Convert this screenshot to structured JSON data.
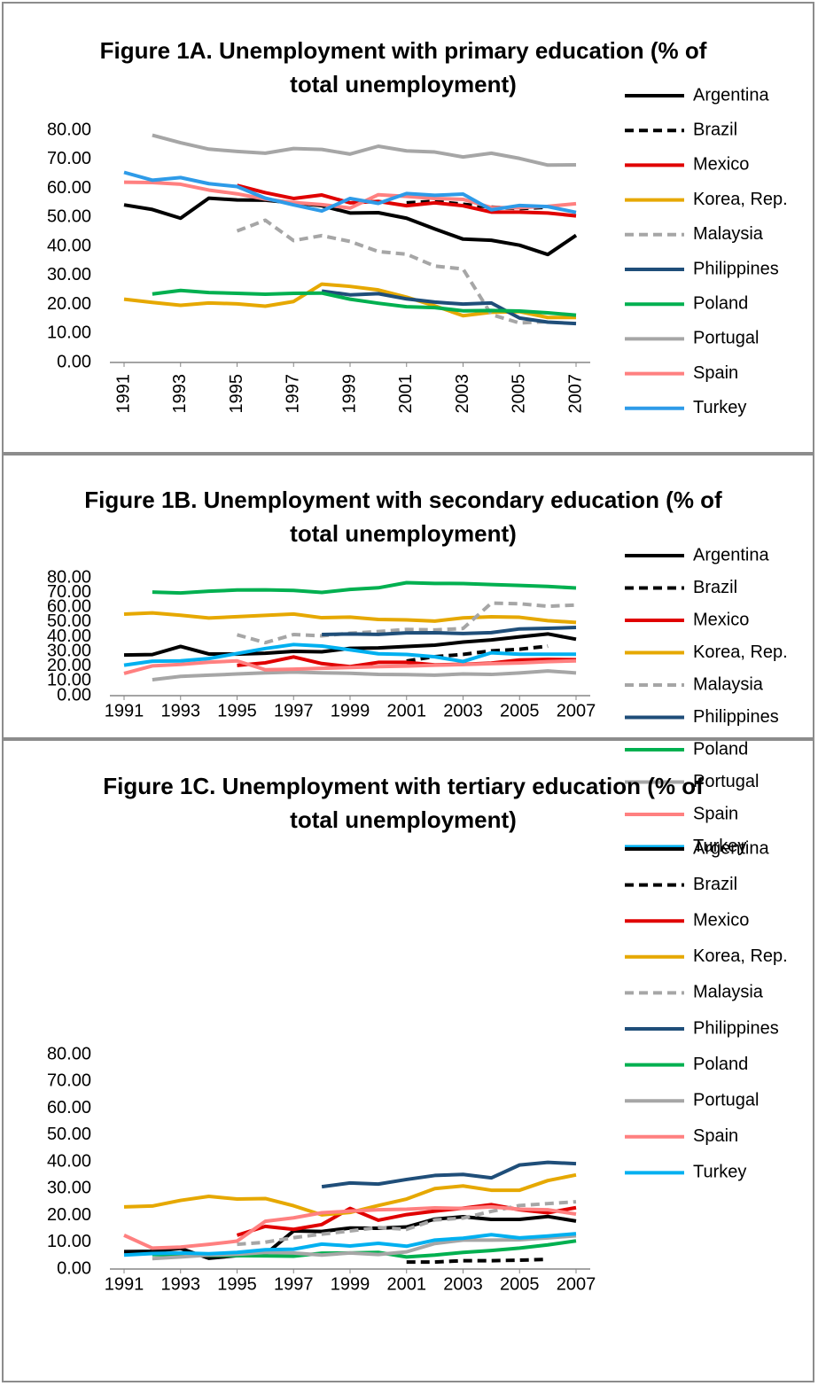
{
  "chart_data": [
    {
      "type": "line",
      "title": "Figure 1A. Unemployment with primary education (% of total unemployment)",
      "x": [
        1991,
        1992,
        1993,
        1994,
        1995,
        1996,
        1997,
        1998,
        1999,
        2000,
        2001,
        2002,
        2003,
        2004,
        2005,
        2006,
        2007
      ],
      "xlim": [
        1991,
        2007
      ],
      "xticks": [
        1991,
        1993,
        1995,
        1997,
        1999,
        2001,
        2003,
        2005,
        2007
      ],
      "xtick_rotation": -90,
      "ylim": [
        0,
        80
      ],
      "yticks": [
        {
          "value": 0,
          "label": "0.00"
        },
        {
          "value": 10,
          "label": "10.00"
        },
        {
          "value": 20,
          "label": "20.00"
        },
        {
          "value": 30,
          "label": "30.00"
        },
        {
          "value": 40,
          "label": "40.00"
        },
        {
          "value": 50,
          "label": "50.00"
        },
        {
          "value": 60,
          "label": "60.00"
        },
        {
          "value": 70,
          "label": "70.00"
        },
        {
          "value": 80,
          "label": "80.00"
        }
      ],
      "grid": false,
      "legend": "right",
      "series": [
        {
          "name": "Argentina",
          "color": "#000000",
          "values": [
            54.3,
            52.7,
            49.7,
            56.6,
            56,
            55.9,
            55,
            54,
            51.5,
            51.6,
            49.7,
            46,
            42.5,
            42.1,
            40.4,
            37.2,
            43.8
          ]
        },
        {
          "name": "Brazil",
          "color": "#000000",
          "dash": true,
          "values": [
            null,
            null,
            null,
            null,
            null,
            null,
            null,
            null,
            null,
            null,
            55,
            55.5,
            54.5,
            53.5,
            53,
            53.5,
            null
          ]
        },
        {
          "name": "Mexico",
          "color": "#e00000",
          "values": [
            null,
            null,
            null,
            null,
            61,
            58.5,
            56.5,
            57.7,
            55,
            55.5,
            54,
            55,
            54,
            51.8,
            51.8,
            51.5,
            50.5
          ]
        },
        {
          "name": "Korea, Rep.",
          "color": "#e6a800",
          "values": [
            21.8,
            20.7,
            19.7,
            20.5,
            20.2,
            19.4,
            21,
            27,
            26.2,
            25,
            22.5,
            19.5,
            16.1,
            17.3,
            17.5,
            15.5,
            15.5
          ]
        },
        {
          "name": "Malaysia",
          "color": "#a6a6a6",
          "dash": true,
          "values": [
            null,
            null,
            null,
            null,
            45.3,
            49,
            42,
            43.7,
            41.7,
            38.2,
            37.3,
            33.2,
            32.2,
            16.5,
            13.6,
            14.1,
            null
          ]
        },
        {
          "name": "Philippines",
          "color": "#1f4e79",
          "values": [
            null,
            null,
            null,
            null,
            null,
            null,
            null,
            24.6,
            23.3,
            23.7,
            21.9,
            20.8,
            20.1,
            20.5,
            15.3,
            13.9,
            13.4
          ]
        },
        {
          "name": "Poland",
          "color": "#00b050",
          "values": [
            null,
            23.6,
            24.8,
            24.1,
            23.8,
            23.5,
            23.8,
            23.9,
            21.8,
            20.4,
            19.2,
            18.9,
            17.8,
            17.9,
            17.7,
            17.1,
            16.3
          ]
        },
        {
          "name": "Portugal",
          "color": "#a6a6a6",
          "values": [
            null,
            78.3,
            75.7,
            73.5,
            72.7,
            72.1,
            73.7,
            73.4,
            71.8,
            74.5,
            72.9,
            72.5,
            70.8,
            72.1,
            70.3,
            68,
            68.1
          ]
        },
        {
          "name": "Spain",
          "color": "#ff8080",
          "values": [
            62.1,
            62,
            61.4,
            59.4,
            58.1,
            56.3,
            55.1,
            54.4,
            53.2,
            57.8,
            57.2,
            56.5,
            56.2,
            53.4,
            53.3,
            53.8,
            54.7
          ]
        },
        {
          "name": "Turkey",
          "color": "#2e9be8",
          "values": [
            65.5,
            62.8,
            63.7,
            61.6,
            60.6,
            56.6,
            54.3,
            52.2,
            56.5,
            54.8,
            58.2,
            57.6,
            58,
            52.6,
            54.1,
            53.7,
            51.7
          ]
        }
      ]
    },
    {
      "type": "line",
      "title": "Figure 1B. Unemployment with secondary education (% of total unemployment)",
      "x": [
        1991,
        1992,
        1993,
        1994,
        1995,
        1996,
        1997,
        1998,
        1999,
        2000,
        2001,
        2002,
        2003,
        2004,
        2005,
        2006,
        2007
      ],
      "xlim": [
        1991,
        2007
      ],
      "xticks": [
        1991,
        1993,
        1995,
        1997,
        1999,
        2001,
        2003,
        2005,
        2007
      ],
      "ylim": [
        0,
        80
      ],
      "yticks": [
        {
          "value": 0,
          "label": "0.00"
        },
        {
          "value": 10,
          "label": "10.00"
        },
        {
          "value": 20,
          "label": "20.00"
        },
        {
          "value": 30,
          "label": "30.00"
        },
        {
          "value": 40,
          "label": "40.00"
        },
        {
          "value": 50,
          "label": "50.00"
        },
        {
          "value": 60,
          "label": "60.00"
        },
        {
          "value": 70,
          "label": "70.00"
        },
        {
          "value": 80,
          "label": "80.00"
        }
      ],
      "grid": false,
      "legend": "right",
      "series": [
        {
          "name": "Argentina",
          "color": "#000000",
          "values": [
            27.6,
            27.9,
            33.4,
            28.3,
            28.2,
            28.8,
            30.1,
            29.8,
            32.1,
            32.4,
            33.4,
            34.3,
            36.4,
            37.8,
            39.9,
            41.9,
            38.3
          ]
        },
        {
          "name": "Brazil",
          "color": "#000000",
          "dash": true,
          "values": [
            null,
            null,
            null,
            null,
            null,
            null,
            null,
            null,
            null,
            null,
            23.5,
            26.5,
            28,
            30.4,
            31.5,
            33.6,
            null
          ]
        },
        {
          "name": "Mexico",
          "color": "#e00000",
          "values": [
            null,
            null,
            null,
            null,
            20.5,
            22.3,
            26.3,
            21.8,
            19.7,
            22.6,
            22.6,
            20.9,
            21.3,
            22.1,
            24.2,
            24.7,
            24.4
          ]
        },
        {
          "name": "Korea, Rep.",
          "color": "#e6a800",
          "values": [
            55.3,
            56.2,
            54.6,
            52.7,
            53.6,
            54.5,
            55.4,
            52.9,
            53.3,
            51.7,
            51.4,
            50.6,
            52.8,
            53.5,
            53.2,
            50.9,
            49.7
          ]
        },
        {
          "name": "Malaysia",
          "color": "#a6a6a6",
          "dash": true,
          "values": [
            null,
            null,
            null,
            null,
            41.3,
            36,
            41.5,
            40.6,
            42.4,
            43.5,
            45,
            44.6,
            45.6,
            62.8,
            62.4,
            60.7,
            61.5
          ]
        },
        {
          "name": "Philippines",
          "color": "#1f4e79",
          "values": [
            null,
            null,
            null,
            null,
            null,
            null,
            null,
            41.5,
            41.9,
            41.6,
            42.6,
            42.7,
            42.2,
            42.8,
            45.3,
            45.7,
            46.3
          ]
        },
        {
          "name": "Poland",
          "color": "#00b050",
          "values": [
            null,
            70.3,
            69.7,
            70.9,
            71.7,
            71.8,
            71.4,
            70.1,
            72.1,
            73.2,
            76.7,
            76.2,
            76.1,
            75.4,
            74.8,
            74.1,
            73.1
          ]
        },
        {
          "name": "Portugal",
          "color": "#a6a6a6",
          "values": [
            null,
            10.8,
            13.1,
            13.9,
            14.7,
            15.5,
            16,
            15.5,
            15.2,
            14.4,
            14.3,
            13.9,
            14.7,
            14.4,
            15.4,
            16.8,
            15.4
          ]
        },
        {
          "name": "Spain",
          "color": "#ff8080",
          "values": [
            15.1,
            20.2,
            21.2,
            22.7,
            23.6,
            17.6,
            18,
            18.6,
            19.1,
            19.7,
            20.1,
            20.7,
            21.1,
            21.7,
            22.2,
            23.1,
            23.6
          ]
        },
        {
          "name": "Turkey",
          "color": "#00b0f0",
          "values": [
            20.7,
            23.4,
            23.6,
            25.2,
            28.6,
            32,
            34.7,
            33.7,
            31.1,
            28.4,
            28,
            26.4,
            23.2,
            29.1,
            28.1,
            28.1,
            28.1
          ]
        }
      ]
    },
    {
      "type": "line",
      "title": "Figure 1C. Unemployment with tertiary education (% of total unemployment)",
      "x": [
        1991,
        1992,
        1993,
        1994,
        1995,
        1996,
        1997,
        1998,
        1999,
        2000,
        2001,
        2002,
        2003,
        2004,
        2005,
        2006,
        2007
      ],
      "xlim": [
        1991,
        2007
      ],
      "xticks": [
        1991,
        1993,
        1995,
        1997,
        1999,
        2001,
        2003,
        2005,
        2007
      ],
      "ylim": [
        0,
        80
      ],
      "yticks": [
        {
          "value": 0,
          "label": "0.00"
        },
        {
          "value": 10,
          "label": "10.00"
        },
        {
          "value": 20,
          "label": "20.00"
        },
        {
          "value": 30,
          "label": "30.00"
        },
        {
          "value": 40,
          "label": "40.00"
        },
        {
          "value": 50,
          "label": "50.00"
        },
        {
          "value": 60,
          "label": "60.00"
        },
        {
          "value": 70,
          "label": "70.00"
        },
        {
          "value": 80,
          "label": "80.00"
        }
      ],
      "grid": false,
      "legend": "right",
      "series": [
        {
          "name": "Argentina",
          "color": "#000000",
          "values": [
            6.5,
            6.6,
            7.7,
            4,
            5,
            5.5,
            14.2,
            14,
            15.3,
            15.2,
            15.7,
            18.6,
            19.5,
            18.5,
            18.5,
            19.6,
            17.9
          ]
        },
        {
          "name": "Brazil",
          "color": "#000000",
          "dash": true,
          "values": [
            null,
            null,
            null,
            null,
            null,
            null,
            null,
            null,
            null,
            null,
            2.6,
            2.6,
            3.1,
            3.1,
            3.3,
            3.6,
            null
          ]
        },
        {
          "name": "Mexico",
          "color": "#e00000",
          "values": [
            null,
            null,
            null,
            null,
            12.6,
            15.9,
            14.8,
            16.6,
            22.6,
            18.2,
            20.3,
            21.6,
            22.7,
            24,
            22.1,
            21,
            22.9
          ]
        },
        {
          "name": "Korea, Rep.",
          "color": "#e6a800",
          "values": [
            23.2,
            23.5,
            25.6,
            27.1,
            26.1,
            26.3,
            23.6,
            20.2,
            21.1,
            23.7,
            26.1,
            30,
            31,
            29.4,
            29.4,
            33,
            35.1
          ]
        },
        {
          "name": "Malaysia",
          "color": "#a6a6a6",
          "dash": true,
          "values": [
            null,
            null,
            null,
            null,
            9.2,
            10,
            11.7,
            13,
            14.2,
            15.5,
            14.8,
            18.3,
            19,
            21.5,
            23.7,
            24.4,
            25.1
          ]
        },
        {
          "name": "Philippines",
          "color": "#1f4e79",
          "values": [
            null,
            null,
            null,
            null,
            null,
            null,
            null,
            30.7,
            32.1,
            31.7,
            33.4,
            34.9,
            35.3,
            34,
            38.8,
            39.8,
            39.3
          ]
        },
        {
          "name": "Poland",
          "color": "#00b050",
          "values": [
            null,
            5.4,
            5.2,
            5.1,
            5,
            4.9,
            4.8,
            5.9,
            6,
            6.2,
            4.5,
            5.2,
            6.2,
            6.9,
            7.8,
            9,
            10.5
          ]
        },
        {
          "name": "Portugal",
          "color": "#a6a6a6",
          "values": [
            null,
            3.9,
            4.5,
            5.2,
            5.5,
            6.2,
            6,
            5.2,
            6,
            5.4,
            6.4,
            9.5,
            10.8,
            10.8,
            10.9,
            11.6,
            12.4
          ]
        },
        {
          "name": "Spain",
          "color": "#ff8080",
          "values": [
            12.6,
            7.8,
            8.2,
            9.2,
            10.4,
            17.8,
            19.1,
            21,
            21.6,
            22.1,
            22.3,
            22.8,
            22.6,
            23.2,
            22.3,
            22.1,
            20.5
          ]
        },
        {
          "name": "Turkey",
          "color": "#00b0f0",
          "values": [
            5.2,
            5.8,
            6,
            5.7,
            6.2,
            7.2,
            7.4,
            9.3,
            8.6,
            9.6,
            8.5,
            10.8,
            11.5,
            12.8,
            11.6,
            12.3,
            13.2
          ]
        }
      ]
    }
  ]
}
